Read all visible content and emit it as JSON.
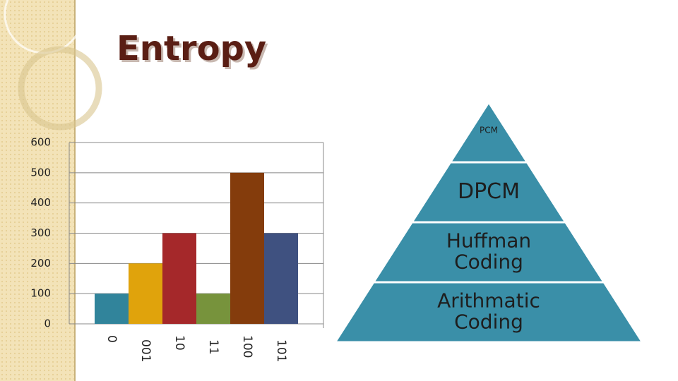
{
  "slide_title": "Entropy",
  "chart_data": {
    "type": "bar",
    "categories": [
      "0",
      "001",
      "10",
      "11",
      "100",
      "101"
    ],
    "values": [
      100,
      200,
      300,
      100,
      500,
      300
    ],
    "colors": [
      "#31849b",
      "#e0a30c",
      "#a5282a",
      "#77933c",
      "#843c0c",
      "#3f5180"
    ],
    "ylim": [
      0,
      600
    ],
    "yticks": [
      0,
      100,
      200,
      300,
      400,
      500,
      600
    ],
    "grid": true
  },
  "pyramid": {
    "color": "#3a8fa8",
    "levels": [
      {
        "lines": [
          "PCM"
        ]
      },
      {
        "lines": [
          "DPCM"
        ]
      },
      {
        "lines": [
          "Huffman",
          "Coding"
        ]
      },
      {
        "lines": [
          "Arithmatic",
          "Coding"
        ]
      }
    ]
  }
}
